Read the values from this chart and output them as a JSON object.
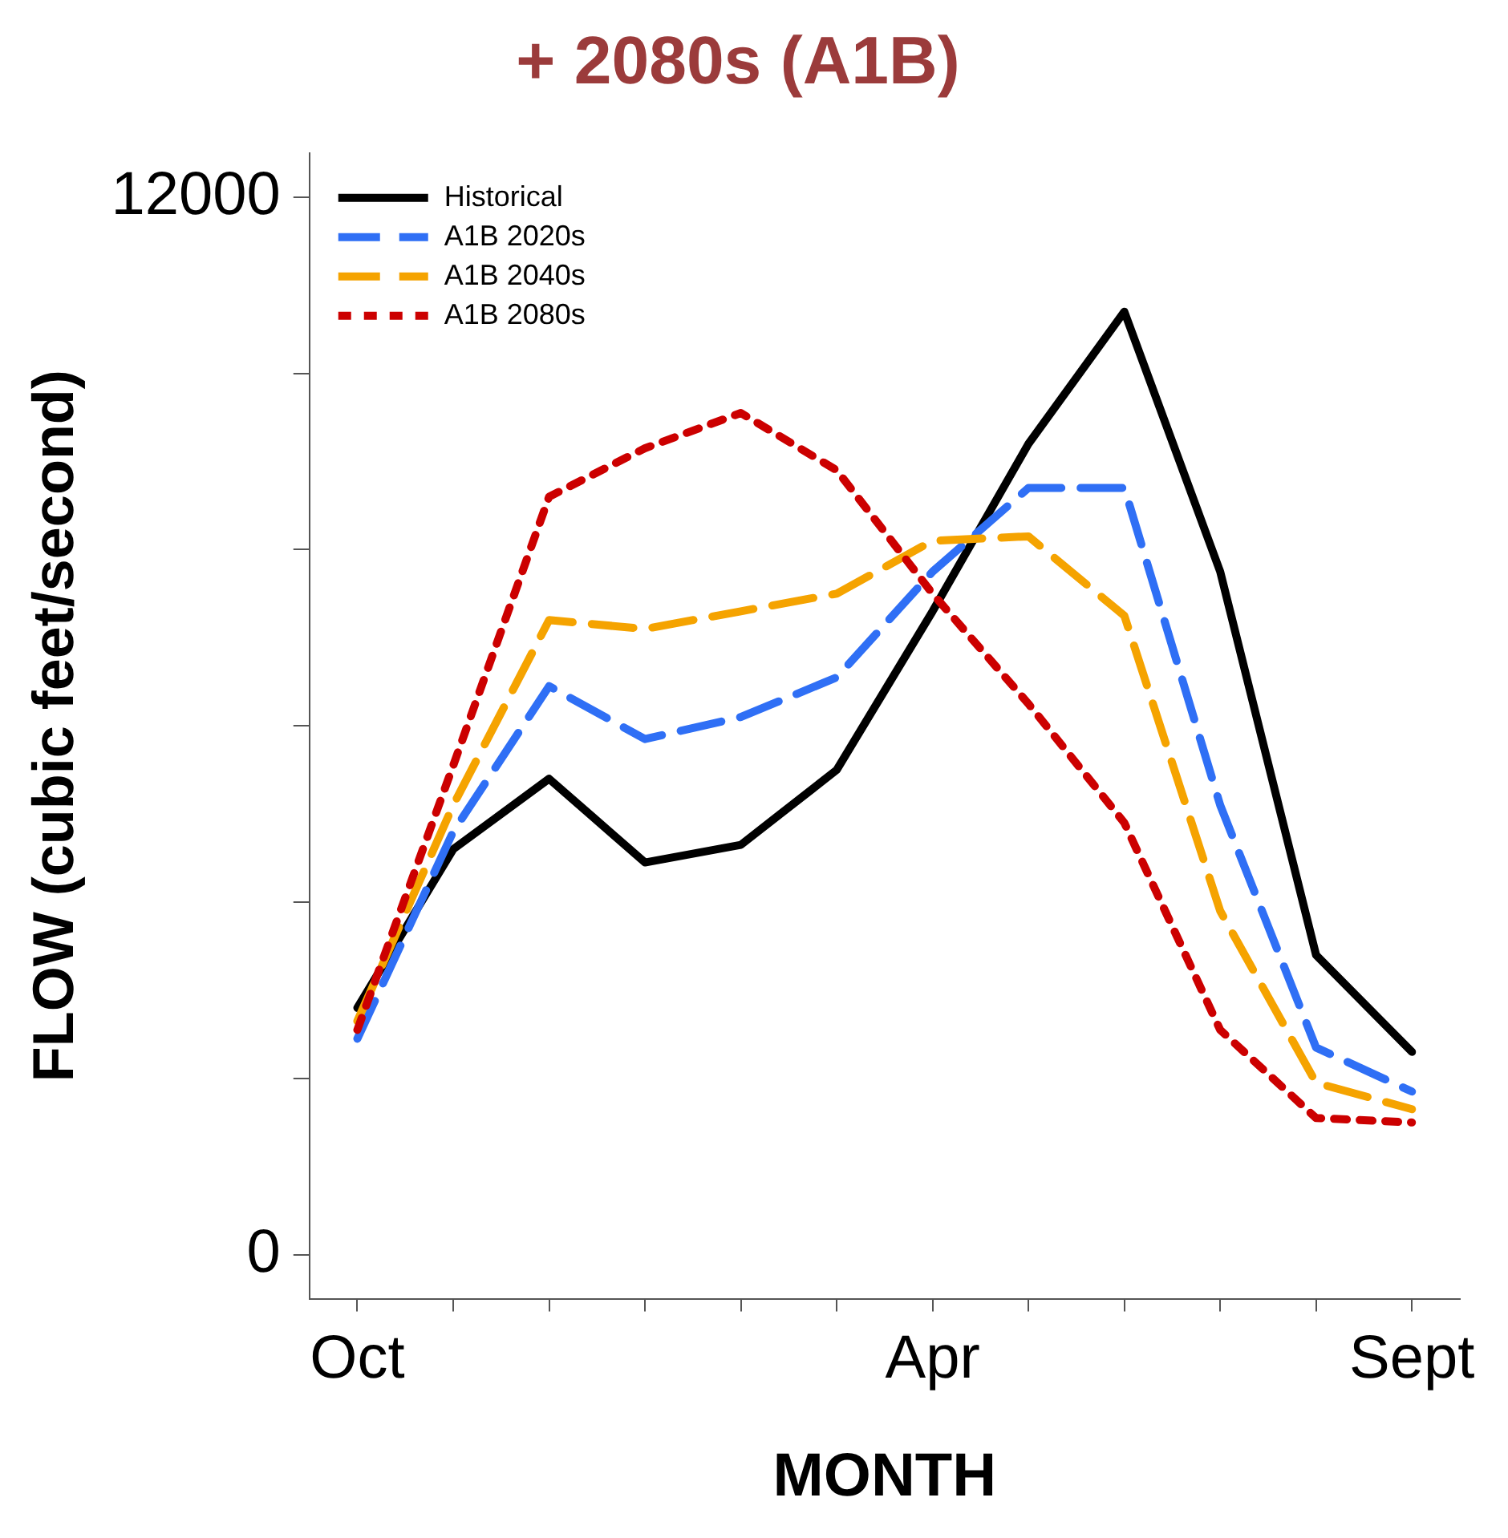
{
  "chart_data": {
    "type": "line",
    "title": "+ 2080s (A1B)",
    "xlabel": "MONTH",
    "ylabel": "FLOW (cubic feet/second)",
    "categories": [
      "Oct",
      null,
      null,
      null,
      null,
      null,
      "Apr",
      null,
      null,
      null,
      null,
      "Sept"
    ],
    "ylim": [
      -500,
      12500
    ],
    "yticks": [
      0,
      {
        "value": 2000,
        "label": null
      },
      {
        "value": 4000,
        "label": null
      },
      {
        "value": 6000,
        "label": null
      },
      {
        "value": 8000,
        "label": null
      },
      {
        "value": 10000,
        "label": null
      },
      12000
    ],
    "grid": false,
    "legend": "top left",
    "marker": "none",
    "series": [
      {
        "name": "Historical",
        "color": "#000000",
        "line_style": "solid",
        "values": [
          2800,
          4600,
          5400,
          4450,
          4650,
          5500,
          7300,
          9200,
          10700,
          7750,
          3400,
          2300
        ]
      },
      {
        "name": "A1B 2020s",
        "color": "#2f6ff5",
        "line_style": "dashed",
        "values": [
          2450,
          4800,
          6450,
          5850,
          6100,
          6550,
          7750,
          8700,
          8700,
          5100,
          2350,
          1850
        ]
      },
      {
        "name": "A1B 2040s",
        "color": "#f5a300",
        "line_style": "dashed",
        "values": [
          2650,
          5100,
          7200,
          7100,
          7300,
          7500,
          8100,
          8150,
          7250,
          3900,
          1950,
          1650
        ]
      },
      {
        "name": "A1B 2080s",
        "color": "#cc0000",
        "line_style": "dotted",
        "values": [
          2550,
          5550,
          8600,
          9150,
          9550,
          8900,
          7500,
          6250,
          4900,
          2550,
          1550,
          1500
        ]
      }
    ]
  }
}
